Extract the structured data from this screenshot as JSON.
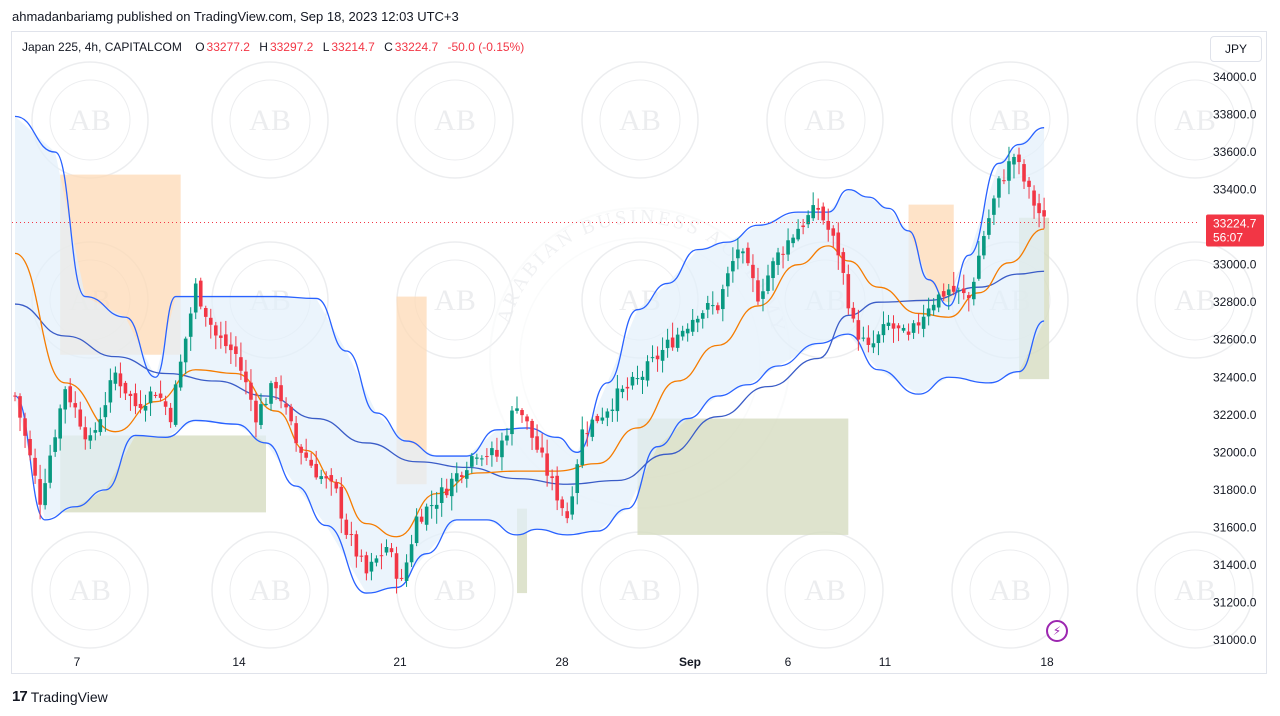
{
  "header": {
    "published": "ahmadanbariamg published on TradingView.com, Sep 18, 2023 12:03 UTC+3"
  },
  "legend": {
    "symbol": "Japan 225, 4h, CAPITALCOM",
    "open_label": "O",
    "open": "33277.2",
    "high_label": "H",
    "high": "33297.2",
    "low_label": "L",
    "low": "33214.7",
    "close_label": "C",
    "close": "33224.7",
    "change": "-50.0 (-0.15%)"
  },
  "currency_button": "JPY",
  "price_badge": {
    "price": "33224.7",
    "countdown": "56:07"
  },
  "brand": {
    "logo": "17",
    "name": "TradingView"
  },
  "watermark": {
    "text": "AB",
    "ring_text": "ARABIAN BUSINESS ACADEMY"
  },
  "colors": {
    "up": "#089981",
    "down": "#f23645",
    "bb_line": "#2962ff",
    "bb_fill": "#e3f0fb",
    "ema": "#f57c00",
    "demand": "#d6dcc0",
    "supply": "#fdd9b5",
    "last_price_line": "#f23645"
  },
  "chart_data": {
    "type": "candlestick",
    "title": "",
    "ylim": [
      30900,
      34150
    ],
    "y_ticks": [
      "34000.0",
      "33800.0",
      "33600.0",
      "33400.0",
      "33200.0",
      "33000.0",
      "32800.0",
      "32600.0",
      "32400.0",
      "32200.0",
      "32000.0",
      "31800.0",
      "31600.0",
      "31400.0",
      "31200.0",
      "31000.0"
    ],
    "x_ticks": [
      "7",
      "14",
      "21",
      "28",
      "Sep",
      "6",
      "11",
      "18"
    ],
    "last_price": 33224.7,
    "close_path": [
      [
        0,
        32300
      ],
      [
        5,
        31750
      ],
      [
        10,
        32350
      ],
      [
        15,
        32050
      ],
      [
        20,
        32420
      ],
      [
        24,
        32250
      ],
      [
        28,
        32330
      ],
      [
        31,
        32200
      ],
      [
        36,
        32880
      ],
      [
        40,
        32620
      ],
      [
        44,
        32520
      ],
      [
        48,
        32200
      ],
      [
        52,
        32370
      ],
      [
        56,
        32050
      ],
      [
        60,
        31900
      ],
      [
        64,
        31780
      ],
      [
        66,
        31580
      ],
      [
        70,
        31350
      ],
      [
        74,
        31500
      ],
      [
        77,
        31300
      ],
      [
        80,
        31650
      ],
      [
        84,
        31750
      ],
      [
        88,
        31880
      ],
      [
        92,
        32010
      ],
      [
        96,
        31980
      ],
      [
        100,
        32270
      ],
      [
        104,
        32020
      ],
      [
        107,
        31830
      ],
      [
        110,
        31660
      ],
      [
        113,
        32110
      ],
      [
        117,
        32210
      ],
      [
        120,
        32300
      ],
      [
        124,
        32380
      ],
      [
        128,
        32510
      ],
      [
        132,
        32630
      ],
      [
        136,
        32750
      ],
      [
        140,
        32780
      ],
      [
        144,
        33090
      ],
      [
        148,
        32840
      ],
      [
        152,
        33050
      ],
      [
        156,
        33200
      ],
      [
        160,
        33300
      ],
      [
        164,
        33070
      ],
      [
        167,
        32680
      ],
      [
        170,
        32540
      ],
      [
        174,
        32680
      ],
      [
        178,
        32600
      ],
      [
        182,
        32790
      ],
      [
        186,
        32870
      ],
      [
        190,
        32820
      ],
      [
        193,
        33160
      ],
      [
        196,
        33430
      ],
      [
        199,
        33580
      ],
      [
        202,
        33380
      ],
      [
        205,
        33225
      ]
    ],
    "bollinger": {
      "upper": [
        [
          0,
          33790
        ],
        [
          8,
          33600
        ],
        [
          14,
          32830
        ],
        [
          22,
          32720
        ],
        [
          28,
          32400
        ],
        [
          32,
          32830
        ],
        [
          40,
          32830
        ],
        [
          46,
          32830
        ],
        [
          52,
          32830
        ],
        [
          60,
          32820
        ],
        [
          66,
          32540
        ],
        [
          72,
          32210
        ],
        [
          78,
          32060
        ],
        [
          84,
          31980
        ],
        [
          90,
          31980
        ],
        [
          96,
          32120
        ],
        [
          102,
          32130
        ],
        [
          108,
          32080
        ],
        [
          112,
          32000
        ],
        [
          118,
          32370
        ],
        [
          124,
          32760
        ],
        [
          130,
          32900
        ],
        [
          136,
          33080
        ],
        [
          142,
          33120
        ],
        [
          148,
          33210
        ],
        [
          156,
          33280
        ],
        [
          162,
          33280
        ],
        [
          166,
          33400
        ],
        [
          170,
          33360
        ],
        [
          174,
          33300
        ],
        [
          178,
          33180
        ],
        [
          182,
          32920
        ],
        [
          186,
          32780
        ],
        [
          190,
          33050
        ],
        [
          196,
          33540
        ],
        [
          200,
          33640
        ],
        [
          205,
          33730
        ]
      ],
      "middle": [
        [
          0,
          32790
        ],
        [
          10,
          32620
        ],
        [
          20,
          32510
        ],
        [
          30,
          32420
        ],
        [
          40,
          32380
        ],
        [
          50,
          32300
        ],
        [
          60,
          32180
        ],
        [
          70,
          32050
        ],
        [
          80,
          31950
        ],
        [
          90,
          31920
        ],
        [
          100,
          31860
        ],
        [
          110,
          31830
        ],
        [
          120,
          31850
        ],
        [
          130,
          31990
        ],
        [
          140,
          32190
        ],
        [
          150,
          32350
        ],
        [
          160,
          32500
        ],
        [
          166,
          32730
        ],
        [
          172,
          32800
        ],
        [
          182,
          32810
        ],
        [
          192,
          32880
        ],
        [
          200,
          32950
        ],
        [
          205,
          32965
        ]
      ],
      "lower": [
        [
          0,
          32300
        ],
        [
          6,
          31640
        ],
        [
          12,
          31710
        ],
        [
          18,
          31800
        ],
        [
          24,
          32090
        ],
        [
          30,
          32080
        ],
        [
          36,
          32170
        ],
        [
          44,
          32150
        ],
        [
          50,
          32050
        ],
        [
          56,
          31820
        ],
        [
          62,
          31610
        ],
        [
          70,
          31250
        ],
        [
          76,
          31280
        ],
        [
          82,
          31460
        ],
        [
          88,
          31640
        ],
        [
          94,
          31640
        ],
        [
          100,
          31560
        ],
        [
          104,
          31590
        ],
        [
          110,
          31560
        ],
        [
          116,
          31580
        ],
        [
          122,
          31700
        ],
        [
          128,
          32030
        ],
        [
          134,
          32180
        ],
        [
          140,
          32300
        ],
        [
          146,
          32360
        ],
        [
          152,
          32460
        ],
        [
          160,
          32580
        ],
        [
          166,
          32630
        ],
        [
          172,
          32440
        ],
        [
          180,
          32310
        ],
        [
          186,
          32400
        ],
        [
          194,
          32370
        ],
        [
          200,
          32430
        ],
        [
          205,
          32700
        ]
      ]
    },
    "ema": [
      [
        0,
        33060
      ],
      [
        10,
        32370
      ],
      [
        20,
        32110
      ],
      [
        28,
        32270
      ],
      [
        36,
        32440
      ],
      [
        44,
        32420
      ],
      [
        52,
        32220
      ],
      [
        58,
        32010
      ],
      [
        64,
        31840
      ],
      [
        70,
        31620
      ],
      [
        76,
        31550
      ],
      [
        84,
        31780
      ],
      [
        92,
        31890
      ],
      [
        100,
        31900
      ],
      [
        108,
        31900
      ],
      [
        116,
        31940
      ],
      [
        124,
        32130
      ],
      [
        132,
        32380
      ],
      [
        140,
        32570
      ],
      [
        148,
        32780
      ],
      [
        156,
        33000
      ],
      [
        162,
        33100
      ],
      [
        166,
        33020
      ],
      [
        172,
        32880
      ],
      [
        180,
        32740
      ],
      [
        186,
        32720
      ],
      [
        192,
        32850
      ],
      [
        198,
        33010
      ],
      [
        205,
        33190
      ]
    ],
    "zones": [
      {
        "kind": "supply",
        "x0": 9,
        "x1": 33,
        "ytop": 33480,
        "ybot": 32520
      },
      {
        "kind": "demand",
        "x0": 9,
        "x1": 50,
        "ytop": 32090,
        "ybot": 31680
      },
      {
        "kind": "supply",
        "x0": 76,
        "x1": 82,
        "ytop": 32830,
        "ybot": 31830
      },
      {
        "kind": "demand",
        "x0": 100,
        "x1": 102,
        "ytop": 31700,
        "ybot": 31250
      },
      {
        "kind": "demand",
        "x0": 124,
        "x1": 166,
        "ytop": 32180,
        "ybot": 31560
      },
      {
        "kind": "supply",
        "x0": 178,
        "x1": 187,
        "ytop": 33320,
        "ybot": 32800
      },
      {
        "kind": "demand",
        "x0": 200,
        "x1": 206,
        "ytop": 33250,
        "ybot": 32390
      }
    ]
  }
}
